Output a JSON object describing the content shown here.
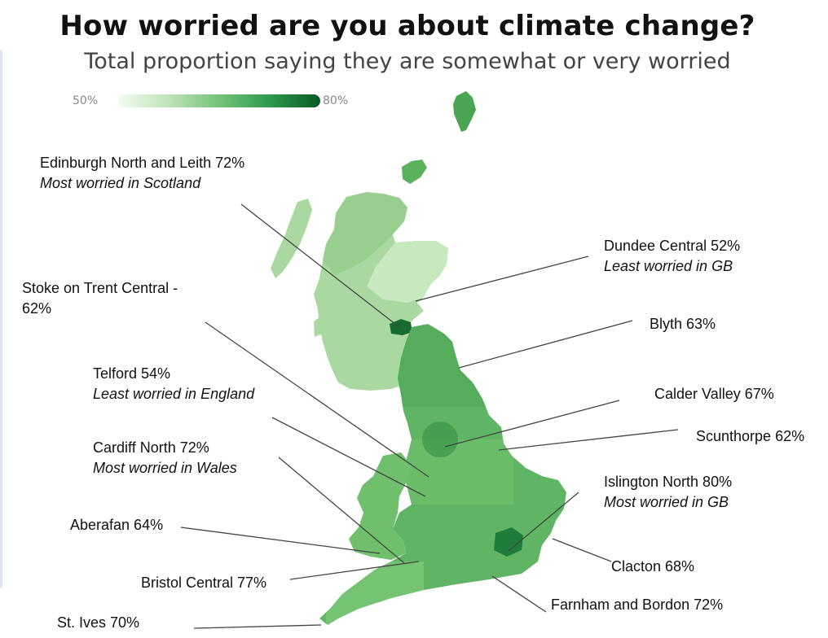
{
  "title": "How worried are you about climate change?",
  "subtitle": "Total proportion saying they are somewhat or very worried",
  "legend": {
    "min_label": "50%",
    "max_label": "80%",
    "color_low": "#f4faf2",
    "color_high": "#0a5a23"
  },
  "map": {
    "region": "Great Britain",
    "colors": {
      "scotland_fill": "#a9d9a0",
      "highlands_fill": "#98cf8f",
      "east_scotland_fill": "#c8e8c0",
      "wales_fill": "#6fbf6c",
      "england_fill": "#5fb563",
      "london_fill": "#1e7d3a",
      "edinburgh_fill": "#176b30"
    }
  },
  "annotations": [
    {
      "name": "Edinburgh North and Leith 72%",
      "note": "Most worried in Scotland"
    },
    {
      "name": "Dundee Central 52%",
      "note": "Least worried in GB"
    },
    {
      "name": "Stoke on Trent Central -",
      "name2": "62%"
    },
    {
      "name": "Blyth 63%"
    },
    {
      "name": "Telford 54%",
      "note": "Least worried in England"
    },
    {
      "name": "Calder Valley 67%"
    },
    {
      "name": "Scunthorpe 62%"
    },
    {
      "name": "Cardiff North 72%",
      "note": "Most worried in Wales"
    },
    {
      "name": "Islington North 80%",
      "note": "Most worried in GB"
    },
    {
      "name": "Aberafan 64%"
    },
    {
      "name": "Clacton 68%"
    },
    {
      "name": "Bristol Central 77%"
    },
    {
      "name": "Farnham and Bordon 72%"
    },
    {
      "name": "St. Ives 70%"
    }
  ]
}
